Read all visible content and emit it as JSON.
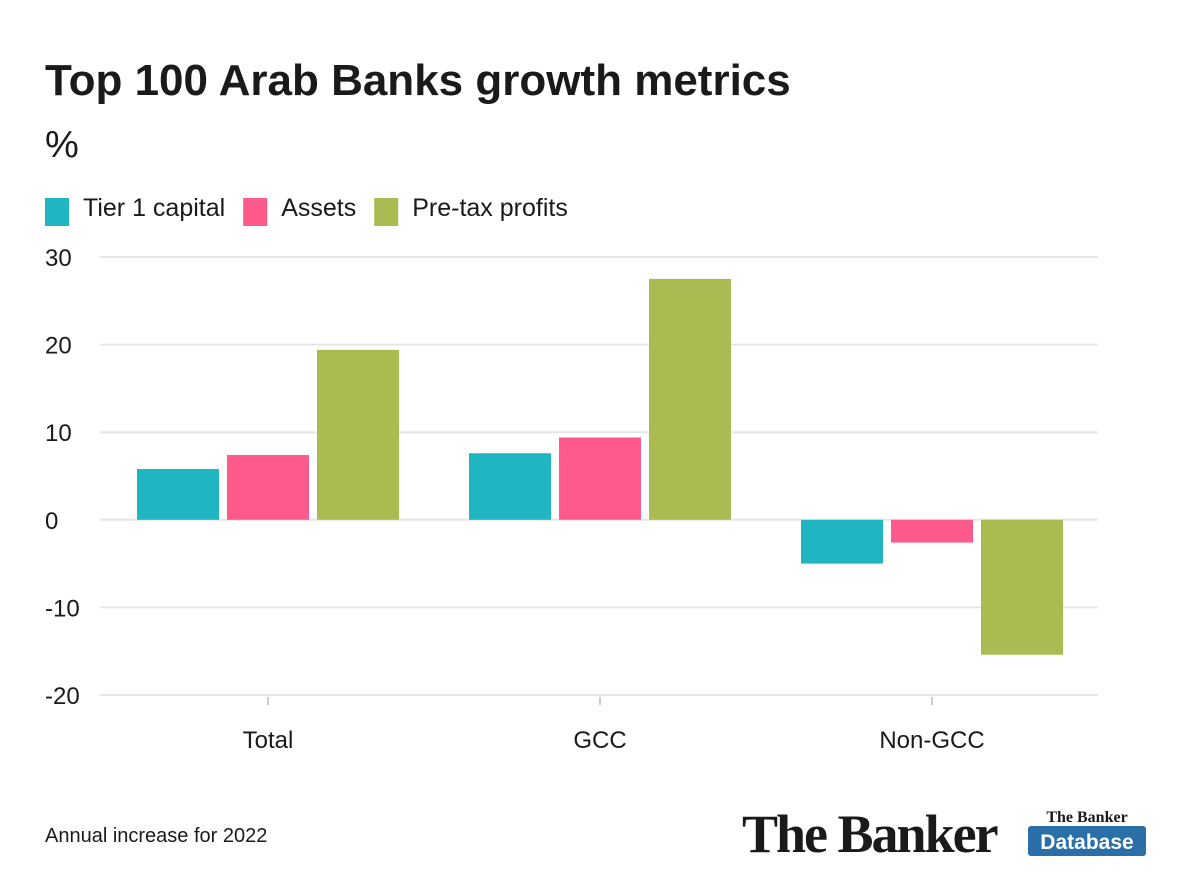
{
  "chart_data": {
    "type": "bar",
    "title": "Top 100 Arab Banks growth metrics",
    "subtitle": "%",
    "categories": [
      "Total",
      "GCC",
      "Non-GCC"
    ],
    "series": [
      {
        "name": "Tier 1 capital",
        "color": "#1fb5c1",
        "values": [
          5.8,
          7.6,
          -5.0
        ]
      },
      {
        "name": "Assets",
        "color": "#ff5a8c",
        "values": [
          7.4,
          9.4,
          -2.6
        ]
      },
      {
        "name": "Pre-tax profits",
        "color": "#a9bb51",
        "values": [
          19.4,
          27.5,
          -15.4
        ]
      }
    ],
    "ylim": [
      -20,
      30
    ],
    "yticks": [
      -20,
      -10,
      0,
      10,
      20,
      30
    ],
    "grid": true,
    "legend": "top-left",
    "note": "Annual increase for 2022"
  },
  "logo": {
    "name": "The Banker",
    "badge_top": "The Banker",
    "badge_bottom": "Database"
  }
}
